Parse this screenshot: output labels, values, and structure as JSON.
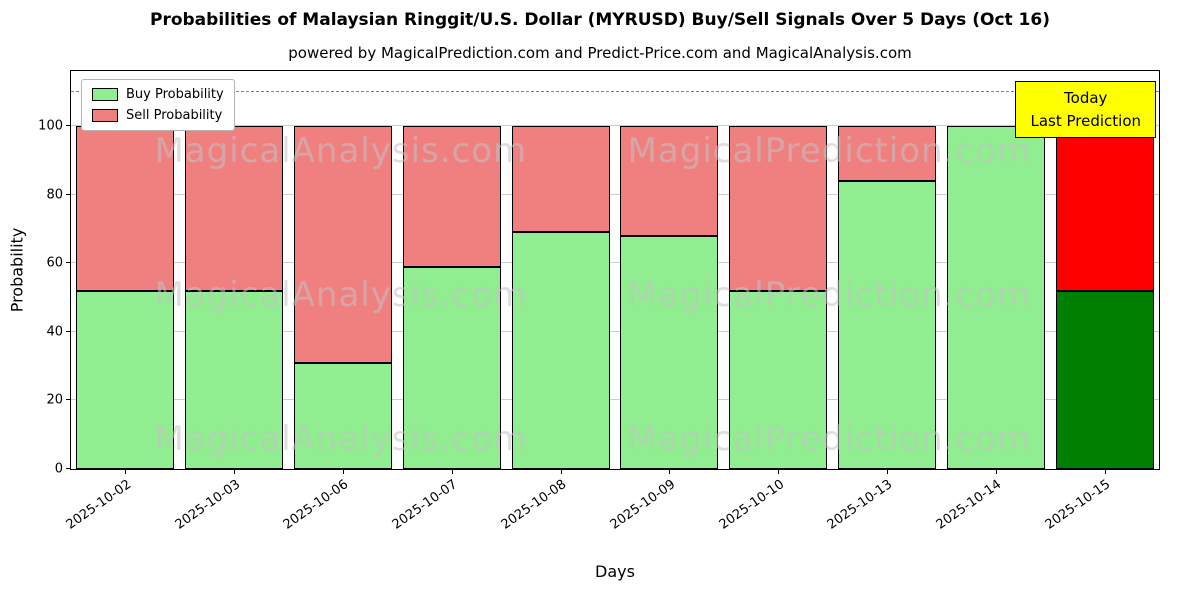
{
  "title": "Probabilities of Malaysian Ringgit/U.S. Dollar (MYRUSD) Buy/Sell Signals Over 5 Days (Oct 16)",
  "subtitle": "powered by MagicalPrediction.com and Predict-Price.com and MagicalAnalysis.com",
  "chart_data": {
    "type": "bar",
    "stacked": true,
    "xlabel": "Days",
    "ylabel": "Probability",
    "ylim": [
      0,
      116
    ],
    "yticks": [
      0,
      20,
      40,
      60,
      80,
      100
    ],
    "dashed_line_y": 110,
    "grid": true,
    "legend_position": "top-left",
    "categories": [
      "2025-10-02",
      "2025-10-03",
      "2025-10-06",
      "2025-10-07",
      "2025-10-08",
      "2025-10-09",
      "2025-10-10",
      "2025-10-13",
      "2025-10-14",
      "2025-10-15"
    ],
    "series": [
      {
        "name": "Buy Probability",
        "color": "#90ee90",
        "values": [
          52,
          52,
          31,
          59,
          69,
          68,
          52,
          84,
          100,
          52
        ]
      },
      {
        "name": "Sell Probability",
        "color": "#f08080",
        "values": [
          48,
          48,
          69,
          41,
          31,
          32,
          48,
          16,
          0,
          48
        ]
      }
    ],
    "today_bar": {
      "index": 9,
      "buy_color": "#008000",
      "sell_color": "#ff0000"
    },
    "annotation": {
      "line1": "Today",
      "line2": "Last Prediction",
      "bg_color": "#ffff00"
    },
    "watermarks": {
      "left": "MagicalAnalysis.com",
      "right": "MagicalPrediction.com"
    }
  }
}
